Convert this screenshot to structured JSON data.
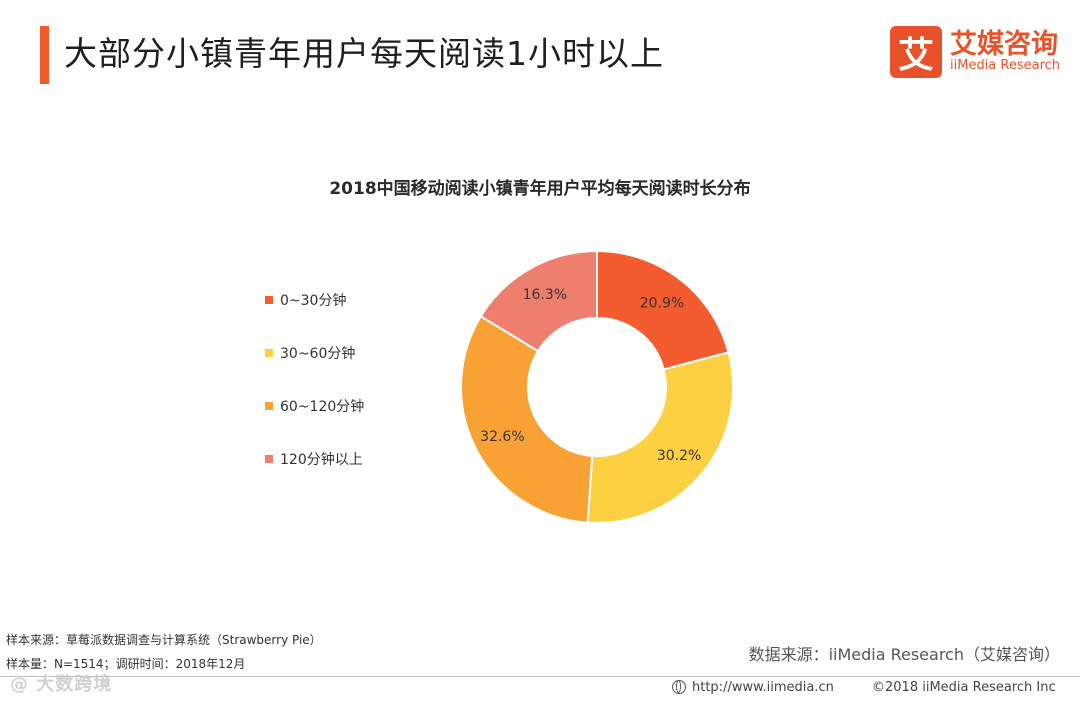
{
  "header": {
    "title": "大部分小镇青年用户每天阅读1小时以上",
    "accent_color": "#F05A28"
  },
  "logo": {
    "mark": "艾",
    "name_cn": "艾媒咨询",
    "name_en": "iiMedia Research",
    "color": "#E8522A"
  },
  "chart_data": {
    "type": "pie",
    "donut": true,
    "title": "2018中国移动阅读小镇青年用户平均每天阅读时长分布",
    "legend_position": "left",
    "slices": [
      {
        "label": "0~30分钟",
        "value": 20.9,
        "display": "20.9%",
        "color": "#F25C2E"
      },
      {
        "label": "30~60分钟",
        "value": 30.2,
        "display": "30.2%",
        "color": "#FDD042"
      },
      {
        "label": "60~120分钟",
        "value": 32.6,
        "display": "32.6%",
        "color": "#F8A235"
      },
      {
        "label": "120分钟以上",
        "value": 16.3,
        "display": "16.3%",
        "color": "#EE7F6E"
      }
    ]
  },
  "footnotes": {
    "sample_source": "样本来源：草莓派数据调查与计算系统（Strawberry Pie）",
    "sample_size": "样本量：N=1514；调研时间：2018年12月",
    "data_source": "数据来源：iiMedia Research（艾媒咨询）"
  },
  "footer": {
    "url": "http://www.iimedia.cn",
    "copyright": "©2018  iiMedia Research  Inc",
    "watermark": "@ 大数跨境"
  }
}
